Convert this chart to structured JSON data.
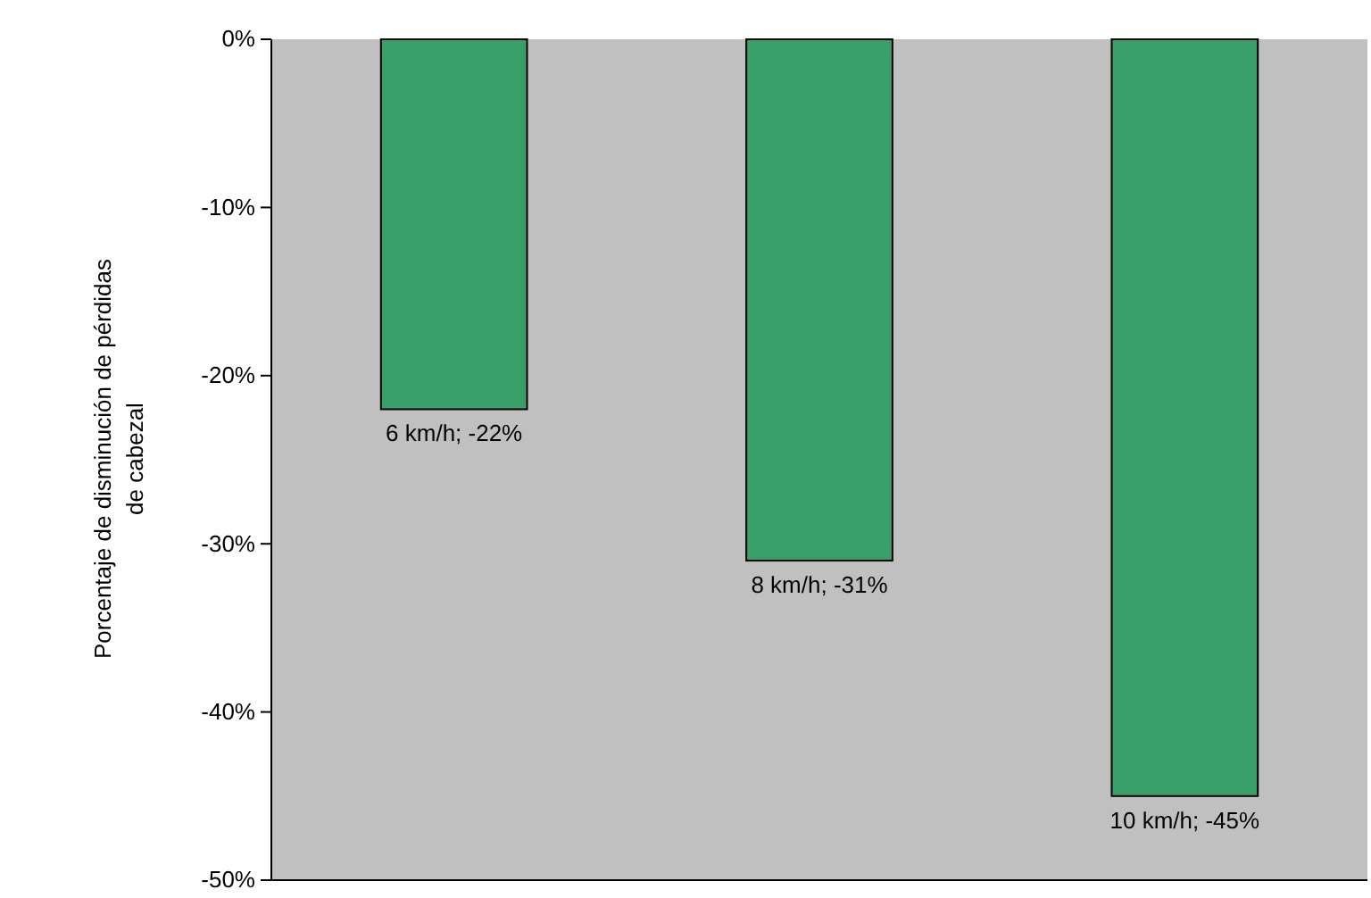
{
  "chart_data": {
    "type": "bar",
    "ylabel": "Porcentaje de disminución de pérdidas de cabezal",
    "categories": [
      null,
      null,
      null
    ],
    "values": [
      -22,
      -31,
      -45
    ],
    "value_labels": [
      "6 km/h; -22%",
      "8 km/h; -31%",
      "10 km/h; -45%"
    ],
    "color": "#3a9e68",
    "ylim": [
      -50,
      0
    ],
    "yticks": [
      {
        "value": 0,
        "label": "0%"
      },
      {
        "value": -10,
        "label": "-10%"
      },
      {
        "value": -20,
        "label": "-20%"
      },
      {
        "value": -30,
        "label": "-30%"
      },
      {
        "value": -40,
        "label": "-40%"
      },
      {
        "value": -50,
        "label": "-50%"
      }
    ],
    "tick_labels": "y"
  }
}
